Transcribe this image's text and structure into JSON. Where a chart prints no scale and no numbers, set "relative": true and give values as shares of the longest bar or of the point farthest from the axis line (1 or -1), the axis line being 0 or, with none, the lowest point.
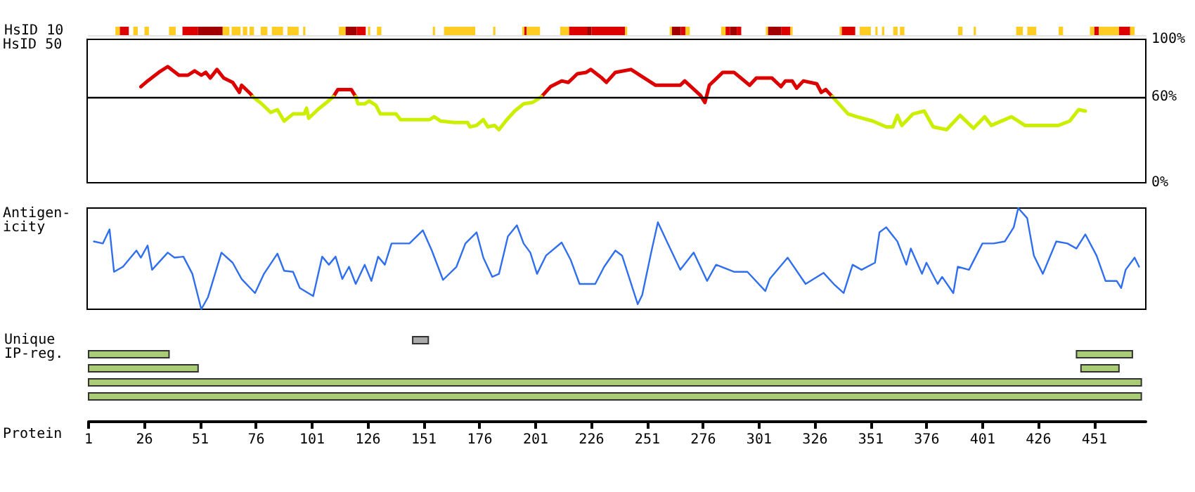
{
  "chart_data": [
    {
      "type": "bar",
      "orientation": "horizontal",
      "categories": [
        "HsID 10"
      ],
      "xlim": [
        1,
        474
      ],
      "tick_labels": "y",
      "series": [
        {
          "color": "#ffcc22",
          "values": [
            2
          ],
          "base": [
            13
          ]
        },
        {
          "color": "#dd0000",
          "values": [
            4
          ],
          "base": [
            15
          ]
        },
        {
          "color": "#ffcc22",
          "values": [
            2
          ],
          "base": [
            21
          ]
        },
        {
          "color": "#ffcc22",
          "values": [
            2
          ],
          "base": [
            26
          ]
        },
        {
          "color": "#ffcc22",
          "values": [
            3
          ],
          "base": [
            37
          ]
        },
        {
          "color": "#dd0000",
          "values": [
            7
          ],
          "base": [
            43
          ]
        },
        {
          "color": "#a00000",
          "values": [
            11
          ],
          "base": [
            50
          ]
        },
        {
          "color": "#ffcc22",
          "values": [
            3
          ],
          "base": [
            61
          ]
        },
        {
          "color": "#ffcc22",
          "values": [
            4
          ],
          "base": [
            65
          ]
        },
        {
          "color": "#ffcc22",
          "values": [
            2
          ],
          "base": [
            70
          ]
        },
        {
          "color": "#ffcc22",
          "values": [
            2
          ],
          "base": [
            73
          ]
        },
        {
          "color": "#ffcc22",
          "values": [
            3
          ],
          "base": [
            78
          ]
        },
        {
          "color": "#ffcc22",
          "values": [
            5
          ],
          "base": [
            83
          ]
        },
        {
          "color": "#ffcc22",
          "values": [
            5
          ],
          "base": [
            90
          ]
        },
        {
          "color": "#ffcc22",
          "values": [
            1
          ],
          "base": [
            97
          ]
        },
        {
          "color": "#ffcc22",
          "values": [
            3
          ],
          "base": [
            113
          ]
        },
        {
          "color": "#a00000",
          "values": [
            5
          ],
          "base": [
            116
          ]
        },
        {
          "color": "#dd0000",
          "values": [
            4
          ],
          "base": [
            121
          ]
        },
        {
          "color": "#ffcc22",
          "values": [
            1
          ],
          "base": [
            126
          ]
        },
        {
          "color": "#ffcc22",
          "values": [
            2
          ],
          "base": [
            130
          ]
        },
        {
          "color": "#ffcc22",
          "values": [
            1
          ],
          "base": [
            155
          ]
        },
        {
          "color": "#ffcc22",
          "values": [
            14
          ],
          "base": [
            160
          ]
        },
        {
          "color": "#ffcc22",
          "values": [
            1
          ],
          "base": [
            182
          ]
        },
        {
          "color": "#ffcc22",
          "values": [
            1
          ],
          "base": [
            195
          ]
        },
        {
          "color": "#dd0000",
          "values": [
            1
          ],
          "base": [
            196
          ]
        },
        {
          "color": "#ffcc22",
          "values": [
            6
          ],
          "base": [
            197
          ]
        },
        {
          "color": "#ffcc22",
          "values": [
            4
          ],
          "base": [
            212
          ]
        },
        {
          "color": "#dd0000",
          "values": [
            8
          ],
          "base": [
            216
          ]
        },
        {
          "color": "#a00000",
          "values": [
            2
          ],
          "base": [
            224
          ]
        },
        {
          "color": "#dd0000",
          "values": [
            15
          ],
          "base": [
            226
          ]
        },
        {
          "color": "#ffcc22",
          "values": [
            1
          ],
          "base": [
            241
          ]
        },
        {
          "color": "#ffcc22",
          "values": [
            1
          ],
          "base": [
            261
          ]
        },
        {
          "color": "#a00000",
          "values": [
            4
          ],
          "base": [
            262
          ]
        },
        {
          "color": "#dd0000",
          "values": [
            2
          ],
          "base": [
            266
          ]
        },
        {
          "color": "#ffcc22",
          "values": [
            2
          ],
          "base": [
            268
          ]
        },
        {
          "color": "#ffcc22",
          "values": [
            2
          ],
          "base": [
            284
          ]
        },
        {
          "color": "#dd0000",
          "values": [
            2
          ],
          "base": [
            286
          ]
        },
        {
          "color": "#a00000",
          "values": [
            3
          ],
          "base": [
            288
          ]
        },
        {
          "color": "#dd0000",
          "values": [
            2
          ],
          "base": [
            291
          ]
        },
        {
          "color": "#ffcc22",
          "values": [
            1
          ],
          "base": [
            304
          ]
        },
        {
          "color": "#a00000",
          "values": [
            6
          ],
          "base": [
            305
          ]
        },
        {
          "color": "#dd0000",
          "values": [
            4
          ],
          "base": [
            311
          ]
        },
        {
          "color": "#ffcc22",
          "values": [
            1
          ],
          "base": [
            315
          ]
        },
        {
          "color": "#ffcc22",
          "values": [
            1
          ],
          "base": [
            337
          ]
        },
        {
          "color": "#dd0000",
          "values": [
            6
          ],
          "base": [
            338
          ]
        },
        {
          "color": "#ffcc22",
          "values": [
            5
          ],
          "base": [
            346
          ]
        },
        {
          "color": "#ffcc22",
          "values": [
            1
          ],
          "base": [
            353
          ]
        },
        {
          "color": "#ffcc22",
          "values": [
            1
          ],
          "base": [
            356
          ]
        },
        {
          "color": "#ffcc22",
          "values": [
            2
          ],
          "base": [
            361
          ]
        },
        {
          "color": "#ffcc22",
          "values": [
            2
          ],
          "base": [
            364
          ]
        },
        {
          "color": "#ffcc22",
          "values": [
            2
          ],
          "base": [
            390
          ]
        },
        {
          "color": "#ffcc22",
          "values": [
            1
          ],
          "base": [
            397
          ]
        },
        {
          "color": "#ffcc22",
          "values": [
            3
          ],
          "base": [
            416
          ]
        },
        {
          "color": "#ffcc22",
          "values": [
            4
          ],
          "base": [
            421
          ]
        },
        {
          "color": "#ffcc22",
          "values": [
            2
          ],
          "base": [
            435
          ]
        },
        {
          "color": "#ffcc22",
          "values": [
            2
          ],
          "base": [
            449
          ]
        },
        {
          "color": "#dd0000",
          "values": [
            2
          ],
          "base": [
            451
          ]
        },
        {
          "color": "#ffcc22",
          "values": [
            9
          ],
          "base": [
            453
          ]
        },
        {
          "color": "#dd0000",
          "values": [
            5
          ],
          "base": [
            462
          ]
        },
        {
          "color": "#ffcc22",
          "values": [
            2
          ],
          "base": [
            467
          ]
        }
      ]
    },
    {
      "type": "line",
      "ylabel": "HsID 50",
      "xlim": [
        1,
        474
      ],
      "ylim": [
        0,
        100
      ],
      "yticks": [
        {
          "value": 0,
          "label": "0%"
        },
        {
          "value": 60,
          "label": "60%"
        },
        {
          "value": 100,
          "label": "100%"
        }
      ],
      "tick_labels": "y",
      "ref_lines": [
        {
          "axis": "y",
          "value": 60,
          "color": "#000000"
        }
      ],
      "series": [
        {
          "color": "#dd0000",
          "x": [
            25,
            28,
            33,
            37,
            42,
            46,
            49,
            52,
            54,
            56,
            59,
            62,
            66,
            69,
            70,
            74,
            75,
            93,
            111,
            113,
            119,
            121,
            160,
            204,
            208,
            213,
            216,
            220,
            224,
            226,
            231,
            233,
            237,
            244,
            250,
            255,
            266,
            268,
            275,
            277,
            279,
            285,
            290,
            297,
            300,
            307,
            311,
            313,
            316,
            318,
            321,
            327,
            329,
            331,
            334
          ],
          "values": [
            67,
            71,
            77,
            81,
            75,
            75,
            78,
            75,
            77,
            73,
            79,
            73,
            70,
            63,
            68,
            62,
            60,
            null,
            60,
            65,
            65,
            60,
            null,
            60,
            67,
            71,
            70,
            76,
            77,
            79,
            73,
            70,
            77,
            79,
            73,
            68,
            68,
            71,
            61,
            56,
            68,
            77,
            77,
            68,
            73,
            73,
            67,
            71,
            71,
            66,
            71,
            69,
            63,
            65,
            60
          ]
        },
        {
          "color": "#ccee00",
          "x": [
            75,
            79,
            83,
            86,
            89,
            93,
            98,
            99,
            100,
            104,
            108,
            111,
            116,
            121,
            122,
            125,
            127,
            130,
            132,
            139,
            141,
            154,
            156,
            159,
            165,
            171,
            172,
            175,
            178,
            180,
            183,
            185,
            188,
            192,
            196,
            200,
            204,
            270,
            334,
            341,
            345,
            352,
            358,
            361,
            363,
            365,
            370,
            375,
            379,
            385,
            391,
            397,
            402,
            405,
            414,
            420,
            435,
            440,
            444,
            447
          ],
          "values": [
            60,
            55,
            49,
            51,
            43,
            48,
            48,
            52,
            45,
            51,
            56,
            60,
            null,
            60,
            55,
            55,
            57,
            54,
            48,
            48,
            44,
            44,
            46,
            43,
            42,
            42,
            39,
            40,
            44,
            39,
            40,
            37,
            43,
            50,
            55,
            56,
            60,
            null,
            60,
            48,
            46,
            43,
            39,
            39,
            47,
            40,
            48,
            50,
            39,
            37,
            47,
            38,
            46,
            40,
            46,
            40,
            40,
            43,
            51,
            50
          ]
        }
      ]
    },
    {
      "type": "line",
      "ylabel": "Antigen-\nicity",
      "relative": true,
      "xlim": [
        1,
        474
      ],
      "tick_labels": false,
      "series": [
        {
          "color": "#2f6fef",
          "x": [
            4,
            8,
            11,
            13,
            17,
            23,
            25,
            28,
            30,
            37,
            40,
            44,
            48,
            52,
            55,
            61,
            66,
            70,
            76,
            80,
            86,
            89,
            93,
            96,
            102,
            106,
            109,
            112,
            115,
            118,
            121,
            125,
            128,
            131,
            134,
            137,
            145,
            151,
            155,
            160,
            166,
            170,
            175,
            178,
            182,
            185,
            189,
            193,
            196,
            199,
            202,
            206,
            213,
            217,
            221,
            228,
            232,
            237,
            240,
            247,
            249,
            253,
            256,
            260,
            266,
            272,
            278,
            282,
            290,
            296,
            304,
            306,
            314,
            322,
            330,
            335,
            339,
            343,
            347,
            353,
            355,
            358,
            363,
            367,
            369,
            374,
            376,
            381,
            383,
            388,
            390,
            395,
            401,
            406,
            411,
            415,
            417,
            421,
            424,
            428,
            434,
            439,
            443,
            447,
            452,
            456,
            461,
            463,
            465,
            469,
            471
          ],
          "values": [
            0.67,
            0.65,
            0.79,
            0.37,
            0.42,
            0.58,
            0.51,
            0.63,
            0.39,
            0.56,
            0.51,
            0.52,
            0.35,
            0,
            0.12,
            0.56,
            0.46,
            0.3,
            0.16,
            0.35,
            0.55,
            0.38,
            0.37,
            0.21,
            0.13,
            0.52,
            0.44,
            0.52,
            0.3,
            0.42,
            0.25,
            0.44,
            0.28,
            0.52,
            0.44,
            0.65,
            0.65,
            0.78,
            0.58,
            0.29,
            0.42,
            0.65,
            0.76,
            0.51,
            0.32,
            0.35,
            0.72,
            0.83,
            0.65,
            0.56,
            0.35,
            0.53,
            0.66,
            0.49,
            0.25,
            0.25,
            0.42,
            0.58,
            0.53,
            0.05,
            0.14,
            0.56,
            0.86,
            0.67,
            0.39,
            0.56,
            0.28,
            0.44,
            0.37,
            0.37,
            0.18,
            0.3,
            0.51,
            0.25,
            0.36,
            0.24,
            0.16,
            0.44,
            0.39,
            0.46,
            0.76,
            0.81,
            0.67,
            0.44,
            0.6,
            0.35,
            0.46,
            0.25,
            0.32,
            0.16,
            0.42,
            0.39,
            0.65,
            0.65,
            0.67,
            0.81,
            1,
            0.9,
            0.53,
            0.35,
            0.67,
            0.65,
            0.6,
            0.74,
            0.53,
            0.28,
            0.28,
            0.21,
            0.39,
            0.51,
            0.42
          ]
        }
      ]
    },
    {
      "type": "bar",
      "orientation": "horizontal",
      "xlabel": "Protein",
      "categories": [
        "Unique",
        "IP-reg.",
        null,
        null,
        null
      ],
      "xlim": [
        1,
        474
      ],
      "xticks": [
        1,
        26,
        51,
        76,
        101,
        126,
        151,
        176,
        201,
        226,
        251,
        276,
        301,
        326,
        351,
        376,
        401,
        426,
        451
      ],
      "series": [
        {
          "color": "#aaaaaa",
          "values": [
            7,
            null,
            null,
            null,
            null
          ],
          "base": [
            146,
            null,
            null,
            null,
            null
          ]
        },
        {
          "color": "#aacc77",
          "values": [
            null,
            36,
            49,
            471,
            471
          ],
          "base": [
            null,
            1,
            1,
            1,
            1
          ]
        },
        {
          "color": "#aacc77",
          "values": [
            null,
            25,
            17,
            null,
            null
          ],
          "base": [
            null,
            443,
            445,
            null,
            null
          ]
        }
      ]
    }
  ]
}
